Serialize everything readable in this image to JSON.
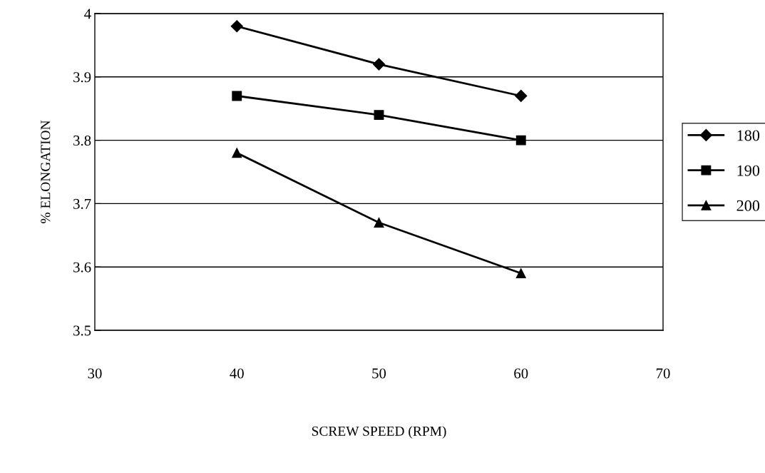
{
  "chart_data": {
    "type": "line",
    "xlabel": "SCREW SPEED (RPM)",
    "ylabel": "% ELONGATION",
    "x": [
      40,
      50,
      60
    ],
    "series": [
      {
        "name": "180",
        "color": "#000000",
        "marker": "diamond",
        "values": [
          3.98,
          3.92,
          3.87
        ]
      },
      {
        "name": "190",
        "color": "#000000",
        "marker": "square",
        "values": [
          3.87,
          3.84,
          3.8
        ]
      },
      {
        "name": "200",
        "color": "#000000",
        "marker": "triangle",
        "values": [
          3.78,
          3.67,
          3.59
        ]
      }
    ],
    "xlim": [
      30,
      70
    ],
    "xticks": [
      30,
      40,
      50,
      60,
      70
    ],
    "ylim": [
      3.5,
      4
    ],
    "yticks": [
      3.5,
      3.6,
      3.7,
      3.8,
      3.9,
      4
    ],
    "grid": "y",
    "legend": "right",
    "line_style": "solid"
  }
}
